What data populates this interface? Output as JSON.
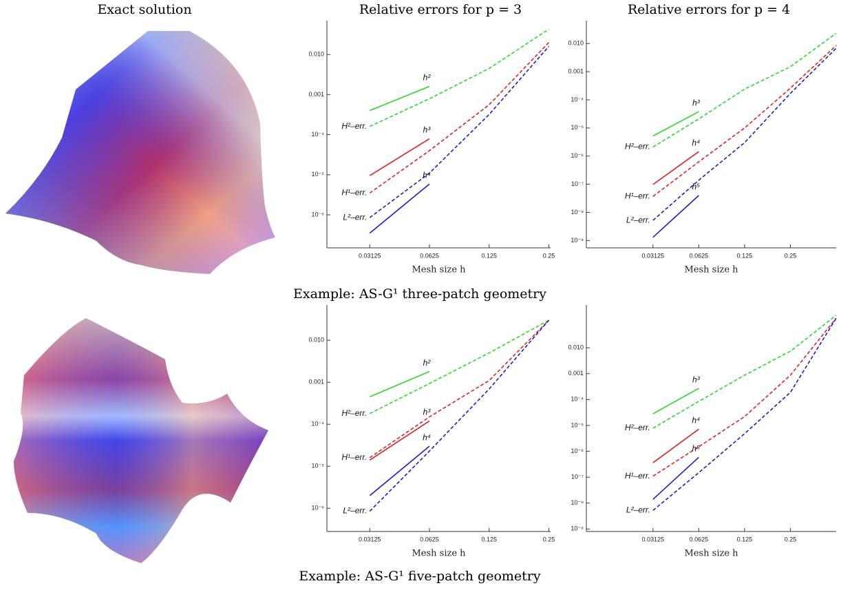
{
  "headers": [
    "Exact solution",
    "Relative errors for p = 3",
    "Relative errors for p = 4"
  ],
  "captions": [
    "Example: AS-G¹ three-patch geometry",
    "Example: AS-G¹ five-patch geometry"
  ],
  "chart_data": [
    {
      "type": "line",
      "x_label": "Mesh size h",
      "log_x": true,
      "log_y": true,
      "x": [
        0.03125,
        0.0625,
        0.125,
        0.25
      ],
      "xlim": [
        0.019,
        0.255
      ],
      "xticks": [
        0.03125,
        0.0625,
        0.125,
        0.25
      ],
      "ylim": [
        1.5e-07,
        0.07
      ],
      "yticks": [
        {
          "value": 0.01,
          "label": "0.010"
        },
        {
          "value": 0.001,
          "label": "0.001"
        },
        {
          "value": 0.0001,
          "label": "10⁻⁴"
        },
        {
          "value": 1e-05,
          "label": "10⁻⁵"
        },
        {
          "value": 1e-06,
          "label": "10⁻⁶"
        }
      ],
      "series": [
        {
          "name": "H²–err.",
          "color": "#22dd22",
          "dashed": true,
          "values": [
            0.00016,
            0.00079,
            0.0045,
            0.043
          ]
        },
        {
          "name": "H¹–err.",
          "color": "#e02020",
          "dashed": true,
          "values": [
            3.5e-06,
            4e-05,
            0.00056,
            0.02
          ]
        },
        {
          "name": "L²–err.",
          "color": "#1a1acc",
          "dashed": true,
          "values": [
            8.5e-07,
            1.1e-05,
            0.00032,
            0.016
          ]
        },
        {
          "name": "h²",
          "color": "#22dd22",
          "dashed": false,
          "values": [
            0.0004,
            0.0016,
            null,
            null
          ]
        },
        {
          "name": "h³",
          "color": "#e02020",
          "dashed": false,
          "values": [
            9.5e-06,
            7.9e-05,
            null,
            null
          ]
        },
        {
          "name": "h⁴",
          "color": "#1a1acc",
          "dashed": false,
          "values": [
            3.5e-07,
            5.9e-06,
            null,
            null
          ]
        }
      ]
    },
    {
      "type": "line",
      "x_label": "Mesh size h",
      "log_x": true,
      "log_y": true,
      "x": [
        0.03125,
        0.0625,
        0.125,
        0.25,
        0.5
      ],
      "xlim": [
        0.0114,
        0.5
      ],
      "xticks": [
        0.03125,
        0.0625,
        0.125,
        0.25
      ],
      "ylim": [
        5.5e-10,
        0.065
      ],
      "yticks": [
        {
          "value": 0.01,
          "label": "0.010"
        },
        {
          "value": 0.001,
          "label": "0.001"
        },
        {
          "value": 0.0001,
          "label": "10⁻⁴"
        },
        {
          "value": 1e-05,
          "label": "10⁻⁵"
        },
        {
          "value": 1e-06,
          "label": "10⁻⁶"
        },
        {
          "value": 1e-07,
          "label": "10⁻⁷"
        },
        {
          "value": 1e-08,
          "label": "10⁻⁸"
        },
        {
          "value": 1e-09,
          "label": "10⁻⁹"
        }
      ],
      "series": [
        {
          "name": "H²–err.",
          "color": "#22dd22",
          "dashed": true,
          "values": [
            2.1e-06,
            2.1e-05,
            0.00024,
            0.0015,
            0.023
          ]
        },
        {
          "name": "H¹–err.",
          "color": "#e02020",
          "dashed": true,
          "values": [
            3.7e-08,
            6.3e-07,
            1e-05,
            0.00026,
            0.0085
          ]
        },
        {
          "name": "L²–err.",
          "color": "#1a1acc",
          "dashed": true,
          "values": [
            5.2e-09,
            1.4e-07,
            3e-06,
            0.00017,
            0.0068
          ]
        },
        {
          "name": "h³",
          "color": "#22dd22",
          "dashed": false,
          "values": [
            5.2e-06,
            3.8e-05,
            null,
            null,
            null
          ]
        },
        {
          "name": "h⁴",
          "color": "#e02020",
          "dashed": false,
          "values": [
            9.8e-08,
            1.45e-06,
            null,
            null,
            null
          ]
        },
        {
          "name": "h⁵",
          "color": "#1a1acc",
          "dashed": false,
          "values": [
            1.3e-09,
            4e-08,
            null,
            null,
            null
          ]
        }
      ]
    },
    {
      "type": "line",
      "x_label": "Mesh size h",
      "log_x": true,
      "log_y": true,
      "x": [
        0.03125,
        0.0625,
        0.125,
        0.25
      ],
      "xlim": [
        0.019,
        0.255
      ],
      "xticks": [
        0.03125,
        0.0625,
        0.125,
        0.25
      ],
      "ylim": [
        2.8e-07,
        0.069
      ],
      "yticks": [
        {
          "value": 0.01,
          "label": "0.010"
        },
        {
          "value": 0.001,
          "label": "0.001"
        },
        {
          "value": 0.0001,
          "label": "10⁻⁴"
        },
        {
          "value": 1e-05,
          "label": "10⁻⁵"
        },
        {
          "value": 1e-06,
          "label": "10⁻⁶"
        }
      ],
      "series": [
        {
          "name": "H²–err.",
          "color": "#22dd22",
          "dashed": true,
          "values": [
            0.00018,
            0.00093,
            0.005,
            0.03
          ]
        },
        {
          "name": "H¹–err.",
          "color": "#e02020",
          "dashed": true,
          "values": [
            1.6e-05,
            0.00015,
            0.0011,
            0.03
          ]
        },
        {
          "name": "L²–err.",
          "color": "#1a1acc",
          "dashed": true,
          "values": [
            8.5e-07,
            2.3e-05,
            0.00069,
            0.03
          ]
        },
        {
          "name": "h²",
          "color": "#22dd22",
          "dashed": false,
          "values": [
            0.00045,
            0.0018,
            null,
            null
          ]
        },
        {
          "name": "h³",
          "color": "#e02020",
          "dashed": false,
          "values": [
            1.4e-05,
            0.00012,
            null,
            null
          ]
        },
        {
          "name": "h⁴",
          "color": "#1a1acc",
          "dashed": false,
          "values": [
            2e-06,
            3e-05,
            null,
            null
          ]
        }
      ]
    },
    {
      "type": "line",
      "x_label": "Mesh size h",
      "log_x": true,
      "log_y": true,
      "x": [
        0.03125,
        0.0625,
        0.125,
        0.25,
        0.5
      ],
      "xlim": [
        0.0114,
        0.5
      ],
      "xticks": [
        0.03125,
        0.0625,
        0.125,
        0.25
      ],
      "ylim": [
        8e-10,
        0.45
      ],
      "yticks": [
        {
          "value": 0.01,
          "label": "0.010"
        },
        {
          "value": 0.001,
          "label": "0.001"
        },
        {
          "value": 0.0001,
          "label": "10⁻⁴"
        },
        {
          "value": 1e-05,
          "label": "10⁻⁵"
        },
        {
          "value": 1e-06,
          "label": "10⁻⁶"
        },
        {
          "value": 1e-07,
          "label": "10⁻⁷"
        },
        {
          "value": 1e-08,
          "label": "10⁻⁸"
        },
        {
          "value": 1e-09,
          "label": "10⁻⁹"
        }
      ],
      "series": [
        {
          "name": "H²–err.",
          "color": "#22dd22",
          "dashed": true,
          "values": [
            7.8e-06,
            8.5e-05,
            0.00087,
            0.0074,
            0.18
          ]
        },
        {
          "name": "H¹–err.",
          "color": "#e02020",
          "dashed": true,
          "values": [
            1.1e-07,
            1.5e-06,
            2.2e-05,
            0.00087,
            0.14
          ]
        },
        {
          "name": "L²–err.",
          "color": "#1a1acc",
          "dashed": true,
          "values": [
            5.2e-09,
            1.5e-07,
            4.8e-06,
            0.00019,
            0.14
          ]
        },
        {
          "name": "h³",
          "color": "#22dd22",
          "dashed": false,
          "values": [
            2.8e-05,
            0.00027,
            null,
            null,
            null
          ]
        },
        {
          "name": "h⁴",
          "color": "#e02020",
          "dashed": false,
          "values": [
            3.6e-07,
            7.2e-06,
            null,
            null,
            null
          ]
        },
        {
          "name": "h⁵",
          "color": "#1a1acc",
          "dashed": false,
          "values": [
            1.4e-08,
            5.9e-07,
            null,
            null,
            null
          ]
        }
      ]
    }
  ]
}
